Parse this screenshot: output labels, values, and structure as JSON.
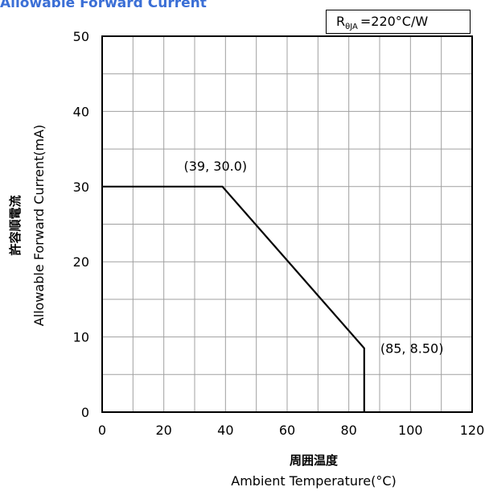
{
  "chart_data": {
    "type": "line",
    "title": "Allowable Forward Current",
    "xlabel_jp": "周囲温度",
    "xlabel": "Ambient Temperature(°C)",
    "ylabel_jp": "許容順電流",
    "ylabel": "Allowable Forward Current(mA)",
    "xlim": [
      0,
      120
    ],
    "ylim": [
      0,
      50
    ],
    "x_ticks": [
      0,
      20,
      40,
      60,
      80,
      100,
      120
    ],
    "y_ticks": [
      0,
      10,
      20,
      30,
      40,
      50
    ],
    "x_minor_step": 10,
    "y_minor_step": 5,
    "grid": true,
    "series": [
      {
        "x": [
          0,
          39,
          85,
          85
        ],
        "y": [
          30,
          30,
          8.5,
          0
        ]
      }
    ],
    "annotations": [
      {
        "text": "(39, 30.0)",
        "x": 39,
        "y": 30
      },
      {
        "text": "(85, 8.50)",
        "x": 85,
        "y": 8.5
      }
    ],
    "thermal_resistance": {
      "symbol": "R",
      "subscript": "θJA",
      "value": "=220°C/W"
    }
  }
}
